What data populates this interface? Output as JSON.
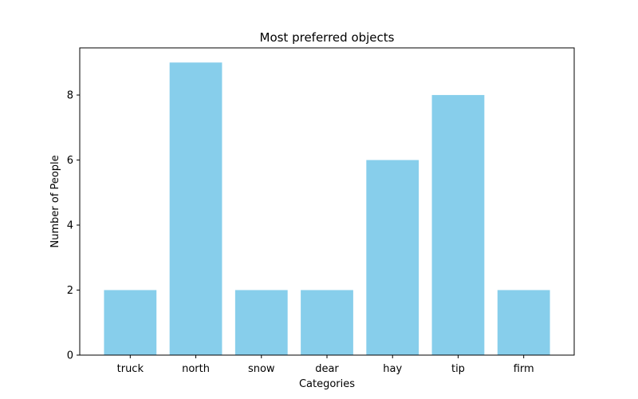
{
  "chart_data": {
    "type": "bar",
    "title": "Most preferred objects",
    "xlabel": "Categories",
    "ylabel": "Number of People",
    "categories": [
      "truck",
      "north",
      "snow",
      "dear",
      "hay",
      "tip",
      "firm"
    ],
    "values": [
      2,
      9,
      2,
      2,
      6,
      8,
      2
    ],
    "ylim": [
      0,
      9.45
    ],
    "yticks": [
      0,
      2,
      4,
      6,
      8
    ],
    "bar_color": "#87ceeb",
    "grid": false,
    "legend": "none"
  }
}
